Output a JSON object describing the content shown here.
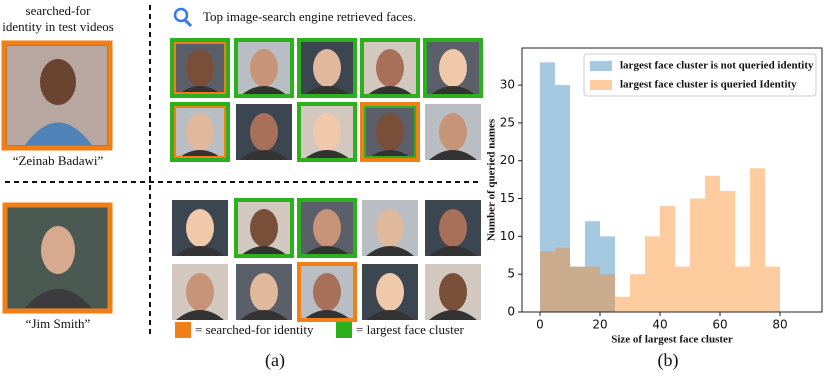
{
  "panel_a": {
    "query_caption": [
      "searched-for",
      "identity in test videos"
    ],
    "search_title": "Top image-search engine retrieved faces.",
    "names": [
      "“Zeinab Badawi”",
      "“Jim Smith”"
    ],
    "legend": [
      "= searched-for identity",
      "= largest face cluster"
    ],
    "label": "(a)"
  },
  "panel_b": {
    "label": "(b)"
  },
  "chart_data": {
    "type": "histogram",
    "xlabel": "Size of largest face cluster",
    "ylabel": "Number of queried names",
    "bins": [
      0,
      5,
      10,
      15,
      20,
      25,
      30,
      35,
      40,
      45,
      50,
      55,
      60,
      65,
      70,
      75,
      80
    ],
    "series": [
      {
        "name": "largest face cluster is not queried identity",
        "color": "#1f77b4",
        "values": [
          33,
          30,
          6,
          12,
          10,
          0,
          0,
          0,
          0,
          0,
          0,
          0,
          0,
          0,
          0,
          0
        ]
      },
      {
        "name": "largest face cluster is queried Identity",
        "color": "#ff7f0e",
        "values": [
          8,
          8.5,
          6,
          6,
          5,
          2,
          5,
          10,
          14,
          6,
          15,
          18,
          16,
          6,
          19,
          6
        ]
      }
    ],
    "xlim": [
      -6,
      94
    ],
    "xticks": [
      0,
      20,
      40,
      60,
      80
    ],
    "ylim": [
      0,
      34.9
    ],
    "yticks": [
      0,
      5,
      10,
      15,
      20,
      25,
      30
    ],
    "legend": "upper right"
  }
}
